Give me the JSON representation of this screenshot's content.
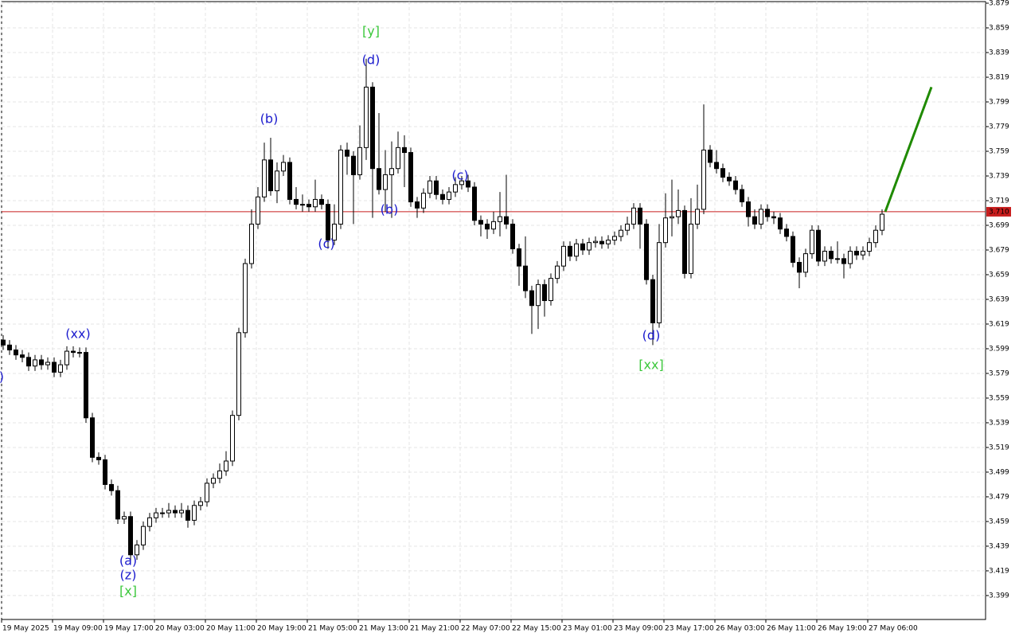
{
  "chart_data": {
    "type": "candlestick",
    "categories": [
      "19 May 2025",
      null,
      null,
      null,
      null,
      null,
      null,
      null,
      "19 May 09:00",
      null,
      null,
      null,
      null,
      null,
      null,
      null,
      "19 May 17:00",
      null,
      null,
      null,
      null,
      null,
      null,
      null,
      "20 May 03:00",
      null,
      null,
      null,
      null,
      null,
      null,
      null,
      "20 May 11:00",
      null,
      null,
      null,
      null,
      null,
      null,
      null,
      "20 May 19:00",
      null,
      null,
      null,
      null,
      null,
      null,
      null,
      "21 May 05:00",
      null,
      null,
      null,
      null,
      null,
      null,
      null,
      "21 May 13:00",
      null,
      null,
      null,
      null,
      null,
      null,
      null,
      "21 May 21:00",
      null,
      null,
      null,
      null,
      null,
      null,
      null,
      "22 May 07:00",
      null,
      null,
      null,
      null,
      null,
      null,
      null,
      "22 May 15:00",
      null,
      null,
      null,
      null,
      null,
      null,
      null,
      "23 May 01:00",
      null,
      null,
      null,
      null,
      null,
      null,
      null,
      "23 May 09:00",
      null,
      null,
      null,
      null,
      null,
      null,
      null,
      "23 May 17:00",
      null,
      null,
      null,
      null,
      null,
      null,
      null,
      "26 May 03:00",
      null,
      null,
      null,
      null,
      null,
      null,
      null,
      "26 May 11:00",
      null,
      null,
      null,
      null,
      null,
      null,
      null,
      "26 May 19:00",
      null,
      null,
      null,
      null,
      null,
      null,
      null,
      "27 May 06:00",
      null,
      null
    ],
    "open": [
      3.606,
      3.602,
      3.598,
      3.594,
      3.592,
      3.585,
      3.59,
      3.586,
      3.588,
      3.58,
      3.586,
      3.597,
      3.596,
      3.596,
      3.543,
      3.511,
      3.509,
      3.489,
      3.484,
      3.461,
      3.463,
      3.432,
      3.44,
      3.455,
      3.462,
      3.466,
      3.466,
      3.468,
      3.466,
      3.468,
      3.46,
      3.472,
      3.475,
      3.49,
      3.494,
      3.5,
      3.508,
      3.545,
      3.612,
      3.668,
      3.7,
      3.722,
      3.752,
      3.727,
      3.743,
      3.75,
      3.72,
      3.716,
      3.716,
      3.714,
      3.72,
      3.716,
      3.687,
      3.7,
      3.76,
      3.755,
      3.74,
      3.762,
      3.811,
      3.745,
      3.728,
      3.74,
      3.745,
      3.762,
      3.758,
      3.718,
      3.713,
      3.725,
      3.735,
      3.724,
      3.72,
      3.726,
      3.732,
      3.735,
      3.73,
      3.703,
      3.7,
      3.696,
      3.702,
      3.706,
      3.7,
      3.68,
      3.666,
      3.646,
      3.634,
      3.651,
      3.638,
      3.656,
      3.666,
      3.682,
      3.674,
      3.684,
      3.679,
      3.685,
      3.686,
      3.684,
      3.687,
      3.69,
      3.695,
      3.7,
      3.713,
      3.7,
      3.655,
      3.62,
      3.685,
      3.705,
      3.706,
      3.711,
      3.66,
      3.7,
      3.712,
      3.76,
      3.75,
      3.745,
      3.738,
      3.735,
      3.728,
      3.718,
      3.706,
      3.7,
      3.712,
      3.706,
      3.705,
      3.696,
      3.69,
      3.669,
      3.661,
      3.676,
      3.695,
      3.67,
      3.678,
      3.672,
      3.672,
      3.668,
      3.678,
      3.675,
      3.678,
      3.685,
      3.695
    ],
    "high": [
      3.61,
      3.606,
      3.602,
      3.598,
      3.596,
      3.594,
      3.594,
      3.592,
      3.592,
      3.59,
      3.601,
      3.601,
      3.6,
      3.6,
      3.547,
      3.515,
      3.513,
      3.493,
      3.488,
      3.467,
      3.467,
      3.444,
      3.459,
      3.466,
      3.47,
      3.47,
      3.474,
      3.472,
      3.474,
      3.472,
      3.476,
      3.479,
      3.494,
      3.498,
      3.506,
      3.516,
      3.549,
      3.616,
      3.672,
      3.712,
      3.73,
      3.766,
      3.77,
      3.75,
      3.756,
      3.754,
      3.73,
      3.724,
      3.72,
      3.736,
      3.724,
      3.72,
      3.716,
      3.764,
      3.766,
      3.759,
      3.78,
      3.834,
      3.815,
      3.79,
      3.76,
      3.767,
      3.775,
      3.772,
      3.762,
      3.722,
      3.729,
      3.739,
      3.739,
      3.728,
      3.73,
      3.738,
      3.739,
      3.74,
      3.734,
      3.707,
      3.704,
      3.71,
      3.726,
      3.74,
      3.704,
      3.684,
      3.69,
      3.65,
      3.655,
      3.655,
      3.66,
      3.67,
      3.686,
      3.686,
      3.688,
      3.688,
      3.689,
      3.69,
      3.69,
      3.691,
      3.694,
      3.699,
      3.706,
      3.717,
      3.717,
      3.704,
      3.659,
      3.7,
      3.725,
      3.736,
      3.728,
      3.715,
      3.721,
      3.732,
      3.797,
      3.764,
      3.76,
      3.749,
      3.742,
      3.739,
      3.732,
      3.722,
      3.712,
      3.716,
      3.716,
      3.71,
      3.709,
      3.7,
      3.694,
      3.673,
      3.68,
      3.699,
      3.699,
      3.682,
      3.682,
      3.686,
      3.676,
      3.682,
      3.682,
      3.682,
      3.689,
      3.699,
      3.712
    ],
    "low": [
      3.598,
      3.594,
      3.59,
      3.588,
      3.581,
      3.581,
      3.582,
      3.582,
      3.576,
      3.576,
      3.582,
      3.592,
      3.592,
      3.539,
      3.507,
      3.505,
      3.485,
      3.48,
      3.457,
      3.457,
      3.425,
      3.428,
      3.436,
      3.451,
      3.458,
      3.462,
      3.462,
      3.462,
      3.462,
      3.454,
      3.456,
      3.468,
      3.471,
      3.486,
      3.49,
      3.496,
      3.504,
      3.541,
      3.608,
      3.664,
      3.696,
      3.718,
      3.723,
      3.717,
      3.739,
      3.716,
      3.712,
      3.71,
      3.71,
      3.71,
      3.712,
      3.68,
      3.683,
      3.696,
      3.74,
      3.7,
      3.736,
      3.752,
      3.705,
      3.724,
      3.71,
      3.705,
      3.741,
      3.73,
      3.714,
      3.705,
      3.709,
      3.721,
      3.72,
      3.716,
      3.716,
      3.722,
      3.728,
      3.726,
      3.699,
      3.69,
      3.688,
      3.692,
      3.69,
      3.696,
      3.676,
      3.65,
      3.64,
      3.611,
      3.615,
      3.625,
      3.634,
      3.652,
      3.662,
      3.67,
      3.67,
      3.675,
      3.675,
      3.681,
      3.68,
      3.68,
      3.683,
      3.686,
      3.691,
      3.696,
      3.68,
      3.651,
      3.602,
      3.616,
      3.681,
      3.69,
      3.7,
      3.656,
      3.656,
      3.696,
      3.708,
      3.746,
      3.741,
      3.734,
      3.731,
      3.724,
      3.714,
      3.698,
      3.696,
      3.696,
      3.702,
      3.7,
      3.692,
      3.686,
      3.665,
      3.648,
      3.657,
      3.672,
      3.666,
      3.666,
      3.668,
      3.668,
      3.656,
      3.664,
      3.671,
      3.671,
      3.674,
      3.681,
      3.691
    ],
    "close": [
      3.602,
      3.598,
      3.594,
      3.592,
      3.585,
      3.59,
      3.586,
      3.588,
      3.58,
      3.586,
      3.597,
      3.596,
      3.596,
      3.543,
      3.511,
      3.509,
      3.489,
      3.484,
      3.461,
      3.463,
      3.432,
      3.44,
      3.455,
      3.462,
      3.466,
      3.466,
      3.468,
      3.466,
      3.468,
      3.46,
      3.472,
      3.475,
      3.49,
      3.494,
      3.5,
      3.508,
      3.545,
      3.612,
      3.668,
      3.7,
      3.722,
      3.752,
      3.727,
      3.743,
      3.75,
      3.72,
      3.716,
      3.716,
      3.714,
      3.72,
      3.716,
      3.687,
      3.7,
      3.76,
      3.755,
      3.74,
      3.762,
      3.811,
      3.745,
      3.728,
      3.74,
      3.745,
      3.762,
      3.758,
      3.718,
      3.713,
      3.725,
      3.735,
      3.724,
      3.72,
      3.726,
      3.732,
      3.735,
      3.73,
      3.703,
      3.7,
      3.696,
      3.702,
      3.706,
      3.7,
      3.68,
      3.666,
      3.646,
      3.634,
      3.651,
      3.638,
      3.656,
      3.666,
      3.682,
      3.674,
      3.684,
      3.679,
      3.685,
      3.686,
      3.684,
      3.687,
      3.69,
      3.695,
      3.7,
      3.713,
      3.7,
      3.655,
      3.62,
      3.685,
      3.705,
      3.706,
      3.711,
      3.66,
      3.7,
      3.712,
      3.76,
      3.75,
      3.745,
      3.738,
      3.735,
      3.728,
      3.718,
      3.706,
      3.7,
      3.712,
      3.706,
      3.705,
      3.696,
      3.69,
      3.669,
      3.661,
      3.676,
      3.695,
      3.67,
      3.678,
      3.672,
      3.672,
      3.668,
      3.678,
      3.675,
      3.678,
      3.685,
      3.695,
      3.708
    ],
    "up_color": "#ffffff",
    "down_color": "#000000",
    "ylim": [
      3.3796,
      3.8803
    ],
    "yticks": [
      3.879,
      3.859,
      3.839,
      3.819,
      3.799,
      3.779,
      3.759,
      3.739,
      3.719,
      3.699,
      3.679,
      3.659,
      3.639,
      3.619,
      3.599,
      3.579,
      3.559,
      3.539,
      3.519,
      3.499,
      3.479,
      3.459,
      3.439,
      3.419,
      3.399
    ],
    "grid": true,
    "current_price": {
      "value": 3.71,
      "label": "3.710",
      "color": "#c81e1e"
    },
    "forecast": {
      "color": "#1f8a00",
      "values": [
        3.71,
        3.811
      ]
    },
    "annotations": [
      {
        "text": "(y)",
        "color": "#1a1acd"
      },
      {
        "text": "(xx)",
        "color": "#1a1acd"
      },
      {
        "text": "(a)",
        "color": "#1a1acd"
      },
      {
        "text": "(z)",
        "color": "#1a1acd"
      },
      {
        "text": "[x]",
        "color": "#3cc83c"
      },
      {
        "text": "(b)",
        "color": "#1a1acd"
      },
      {
        "text": "(c)",
        "color": "#1a1acd"
      },
      {
        "text": "[y]",
        "color": "#3cc83c"
      },
      {
        "text": "(d)",
        "color": "#1a1acd"
      },
      {
        "text": "(b)",
        "color": "#1a1acd"
      },
      {
        "text": "(c)",
        "color": "#1a1acd"
      },
      {
        "text": "(d)",
        "color": "#1a1acd"
      },
      {
        "text": "[xx]",
        "color": "#3cc83c"
      }
    ]
  }
}
